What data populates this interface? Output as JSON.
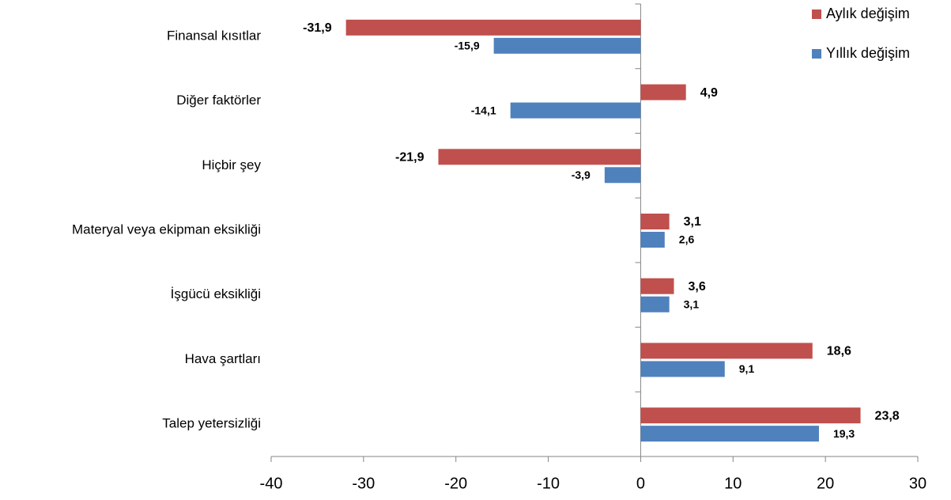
{
  "chart_data": {
    "type": "bar",
    "orientation": "horizontal",
    "categories": [
      "Finansal kısıtlar",
      "Diğer faktörler",
      "Hiçbir şey",
      "Materyal veya ekipman eksikliği",
      "İşgücü eksikliği",
      "Hava şartları",
      "Talep yetersizliği"
    ],
    "series": [
      {
        "name": "Aylık değişim",
        "color": "#c0504d",
        "values": [
          -31.9,
          4.9,
          -21.9,
          3.1,
          3.6,
          18.6,
          23.8
        ],
        "value_labels": [
          "-31,9",
          "4,9",
          "-21,9",
          "3,1",
          "3,6",
          "18,6",
          "23,8"
        ]
      },
      {
        "name": "Yıllık değişim",
        "color": "#4f81bd",
        "values": [
          -15.9,
          -14.1,
          -3.9,
          2.6,
          3.1,
          9.1,
          19.3
        ],
        "value_labels": [
          "-15,9",
          "-14,1",
          "-3,9",
          "2,6",
          "3,1",
          "9,1",
          "19,3"
        ]
      }
    ],
    "xlim": [
      -40,
      30
    ],
    "xticks": [
      -40,
      -30,
      -20,
      -10,
      0,
      10,
      20,
      30
    ],
    "legend": "top-right"
  }
}
